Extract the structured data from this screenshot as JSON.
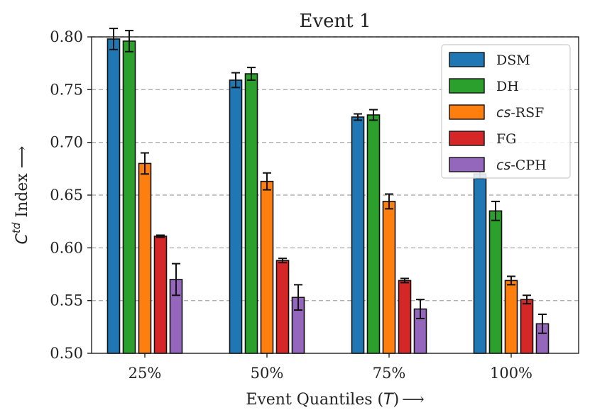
{
  "chart_data": {
    "type": "bar",
    "title": "Event 1",
    "xlabel_text": "Event Quantiles (",
    "xlabel_var": "T",
    "xlabel_end": ")",
    "xlabel_arrow": "⟶",
    "ylabel_main": "C",
    "ylabel_sup": "td",
    "ylabel_rest": " Index ⟶",
    "ylim": [
      0.5,
      0.8
    ],
    "yticks": [
      "0.50",
      "0.55",
      "0.60",
      "0.65",
      "0.70",
      "0.75",
      "0.80"
    ],
    "ytick_values": [
      0.5,
      0.55,
      0.6,
      0.65,
      0.7,
      0.75,
      0.8
    ],
    "categories": [
      "25%",
      "50%",
      "75%",
      "100%"
    ],
    "grid": "y-dashed",
    "legend_position": "top-right",
    "series": [
      {
        "name": "DSM",
        "prefix": "",
        "suffix": "DSM",
        "color": "#1f77b4",
        "values": [
          0.798,
          0.759,
          0.724,
          0.67
        ],
        "errors": [
          0.01,
          0.007,
          0.003,
          0.004
        ]
      },
      {
        "name": "DH",
        "prefix": "",
        "suffix": "DH",
        "color": "#2ca02c",
        "values": [
          0.796,
          0.765,
          0.726,
          0.635
        ],
        "errors": [
          0.01,
          0.006,
          0.005,
          0.009
        ]
      },
      {
        "name": "cs-RSF",
        "prefix": "cs",
        "suffix": "-RSF",
        "color": "#ff7f0e",
        "values": [
          0.68,
          0.663,
          0.644,
          0.569
        ],
        "errors": [
          0.01,
          0.008,
          0.007,
          0.004
        ]
      },
      {
        "name": "FG",
        "prefix": "",
        "suffix": "FG",
        "color": "#d62728",
        "values": [
          0.611,
          0.588,
          0.569,
          0.551
        ],
        "errors": [
          0.001,
          0.002,
          0.002,
          0.004
        ]
      },
      {
        "name": "cs-CPH",
        "prefix": "cs",
        "suffix": "-CPH",
        "color": "#9467bd",
        "values": [
          0.57,
          0.553,
          0.542,
          0.528
        ],
        "errors": [
          0.015,
          0.012,
          0.009,
          0.009
        ]
      }
    ]
  }
}
